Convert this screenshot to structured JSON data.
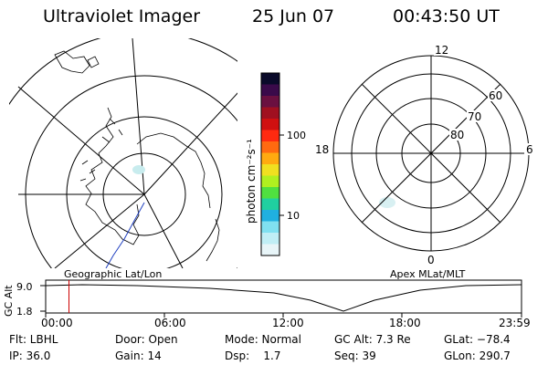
{
  "header": {
    "title": "Ultraviolet Imager",
    "date": "25 Jun 07",
    "time": "00:43:50 UT"
  },
  "colorbar": {
    "label": "photon cm⁻²s⁻¹",
    "ticks": [
      "100",
      "10"
    ],
    "colors": [
      "#0a0a2a",
      "#3a0a4a",
      "#6a1040",
      "#a01020",
      "#d01010",
      "#ff2a10",
      "#ff6a10",
      "#ffaa10",
      "#f0e020",
      "#b0f020",
      "#50e040",
      "#20d0a0",
      "#20b0e0",
      "#80e0f0",
      "#c0eef5",
      "#e8f5f8"
    ]
  },
  "left_map": {
    "caption": "Geographic Lat/Lon"
  },
  "right_map": {
    "caption": "Apex MLat/MLT",
    "mlt_labels": [
      "12",
      "18",
      "6",
      "0"
    ],
    "lat_labels": [
      "60",
      "70",
      "80"
    ]
  },
  "timeline": {
    "ylabel": "GC Alt",
    "yticks": [
      "9.0",
      "1.8"
    ],
    "xticks": [
      "00:00",
      "06:00",
      "12:00",
      "18:00",
      "23:59"
    ],
    "marker_time": "00:43:50",
    "marker_color": "#cc0000"
  },
  "status": {
    "flt": "Flt: LBHL",
    "ip": "IP: 36.0",
    "door": "Door: Open",
    "gain": "Gain: 14",
    "mode": "Mode: Normal",
    "dsp": "Dsp:    1.7",
    "gcalt": "GC Alt: 7.3 Re",
    "seq": "Seq: 39",
    "glat": "GLat: −78.4",
    "glon": "GLon: 290.7"
  }
}
